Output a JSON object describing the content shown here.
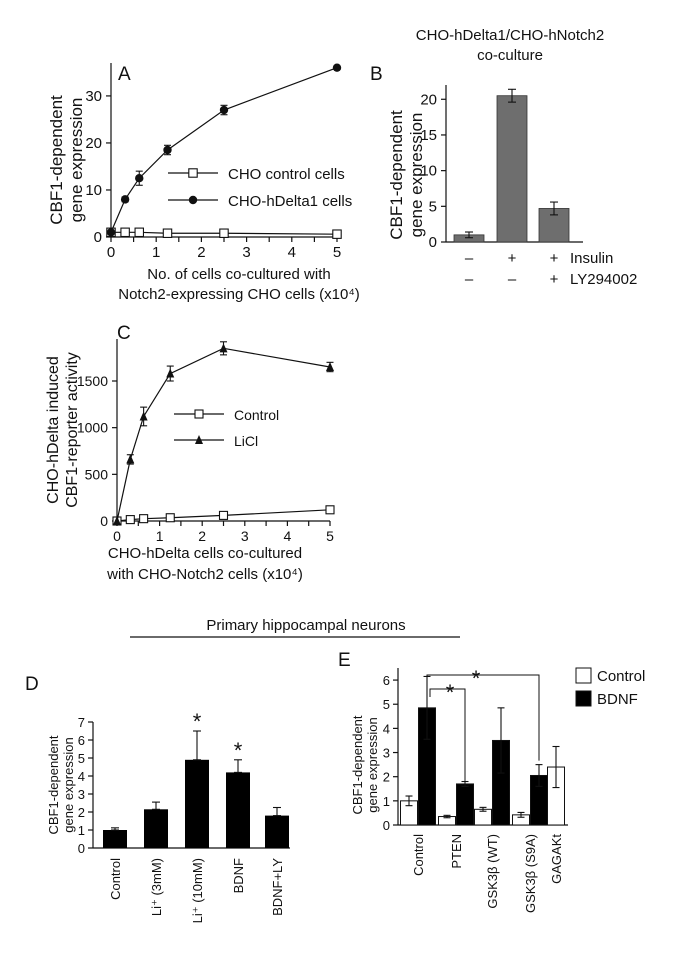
{
  "section_title": "Primary hippocampal neurons",
  "chart_data": [
    {
      "panel": "A",
      "type": "line",
      "title": "",
      "xlabel_line1": "No. of cells co-cultured with",
      "xlabel_line2": "Notch2-expressing CHO cells (x10⁴)",
      "ylabel_line1": "CBF1-dependent",
      "ylabel_line2": "gene expression",
      "xlim": [
        0,
        5
      ],
      "ylim": [
        0,
        37
      ],
      "x_ticks": [
        0,
        0.5,
        1,
        1.5,
        2,
        2.5,
        3,
        3.5,
        4,
        4.5,
        5
      ],
      "x_tick_labels": [
        "0",
        "",
        "1",
        "",
        "2",
        "",
        "3",
        "",
        "4",
        "",
        "5"
      ],
      "y_ticks": [
        0,
        10,
        20,
        30
      ],
      "y_tick_labels": [
        "0",
        "10",
        "20",
        "30"
      ],
      "series": [
        {
          "name": "CHO control cells",
          "marker": "open-square",
          "x": [
            0,
            0.3125,
            0.625,
            1.25,
            2.5,
            5
          ],
          "y": [
            1,
            1,
            1,
            0.8,
            0.8,
            0.6
          ],
          "err": [
            0,
            0,
            0,
            0,
            0,
            0
          ]
        },
        {
          "name": "CHO-hDelta1 cells",
          "marker": "filled-circle",
          "x": [
            0,
            0.3125,
            0.625,
            1.25,
            2.5,
            5
          ],
          "y": [
            1,
            8,
            12.5,
            18.5,
            27,
            36
          ],
          "err": [
            0,
            0.5,
            1.5,
            1,
            1,
            0
          ]
        }
      ]
    },
    {
      "panel": "B",
      "type": "bar",
      "title_line1": "CHO-hDelta1/CHO-hNotch2",
      "title_line2": "co-culture",
      "ylabel_line1": "CBF1-dependent",
      "ylabel_line2": "gene expression",
      "ylim": [
        0,
        22
      ],
      "y_ticks": [
        0,
        5,
        10,
        15,
        20
      ],
      "y_tick_labels": [
        "0",
        "5",
        "10",
        "15",
        "20"
      ],
      "values": [
        1,
        20.5,
        4.7
      ],
      "err": [
        0.4,
        0.9,
        0.9
      ],
      "bar_color": "#6e6e6e",
      "treatment_rows": [
        {
          "label": "Insulin",
          "marks": [
            "–",
            "+",
            "+"
          ]
        },
        {
          "label": "LY294002",
          "marks": [
            "–",
            "–",
            "+"
          ]
        }
      ]
    },
    {
      "panel": "C",
      "type": "line",
      "xlabel_line1": "CHO-hDelta cells co-cultured",
      "xlabel_line2": "with CHO-Notch2 cells (x10⁴)",
      "ylabel_line1": "CHO-hDelta induced",
      "ylabel_line2": "CBF1-reporter activity",
      "xlim": [
        0,
        5
      ],
      "ylim": [
        0,
        1950
      ],
      "x_ticks": [
        0,
        0.5,
        1,
        1.5,
        2,
        2.5,
        3,
        3.5,
        4,
        4.5,
        5
      ],
      "x_tick_labels": [
        "0",
        "",
        "1",
        "",
        "2",
        "",
        "3",
        "",
        "4",
        "",
        "5"
      ],
      "y_ticks": [
        0,
        500,
        1000,
        1500
      ],
      "y_tick_labels": [
        "0",
        "500",
        "1000",
        "1500"
      ],
      "series": [
        {
          "name": "Control",
          "marker": "open-square",
          "x": [
            0,
            0.3125,
            0.625,
            1.25,
            2.5,
            5
          ],
          "y": [
            0,
            15,
            25,
            35,
            60,
            120
          ],
          "err": [
            0,
            5,
            5,
            5,
            10,
            20
          ]
        },
        {
          "name": "LiCl",
          "marker": "filled-triangle",
          "x": [
            0,
            0.3125,
            0.625,
            1.25,
            2.5,
            5
          ],
          "y": [
            0,
            660,
            1120,
            1580,
            1850,
            1650
          ],
          "err": [
            0,
            50,
            100,
            80,
            70,
            50
          ]
        }
      ]
    },
    {
      "panel": "D",
      "type": "bar",
      "ylabel_line1": "CBF1-dependent",
      "ylabel_line2": "gene expression",
      "ylim": [
        0,
        7
      ],
      "y_ticks": [
        0,
        1,
        2,
        3,
        4,
        5,
        6,
        7
      ],
      "y_tick_labels": [
        "0",
        "1",
        "2",
        "3",
        "4",
        "5",
        "6",
        "7"
      ],
      "categories": [
        "Control",
        "Li⁺ (3mM)",
        "Li⁺ (10mM)",
        "BDNF",
        "BDNF+LY"
      ],
      "values": [
        1,
        2.15,
        4.9,
        4.2,
        1.8
      ],
      "err": [
        0.12,
        0.4,
        1.6,
        0.7,
        0.45
      ],
      "significant": [
        false,
        false,
        true,
        true,
        false
      ],
      "star_label": "*",
      "bar_color": "#000000"
    },
    {
      "panel": "E",
      "type": "bar",
      "ylabel_line1": "CBF1-dependent",
      "ylabel_line2": "gene expression",
      "ylim": [
        0,
        6.5
      ],
      "y_ticks": [
        0,
        1,
        2,
        3,
        4,
        5,
        6
      ],
      "y_tick_labels": [
        "0",
        "1",
        "2",
        "3",
        "4",
        "5",
        "6"
      ],
      "categories": [
        "Control",
        "PTEN",
        "GSK3β (WT)",
        "GSK3β (S9A)",
        "GAGAKt"
      ],
      "series": [
        {
          "name": "Control",
          "color": "#ffffff",
          "values": [
            1,
            0.35,
            0.65,
            0.42,
            2.4
          ],
          "err": [
            0.2,
            0.05,
            0.08,
            0.1,
            0.85
          ]
        },
        {
          "name": "BDNF",
          "color": "#000000",
          "values": [
            4.85,
            1.7,
            3.5,
            2.05,
            null
          ],
          "err": [
            1.3,
            0.1,
            1.35,
            0.45,
            null
          ]
        }
      ],
      "star_label": "*"
    }
  ]
}
